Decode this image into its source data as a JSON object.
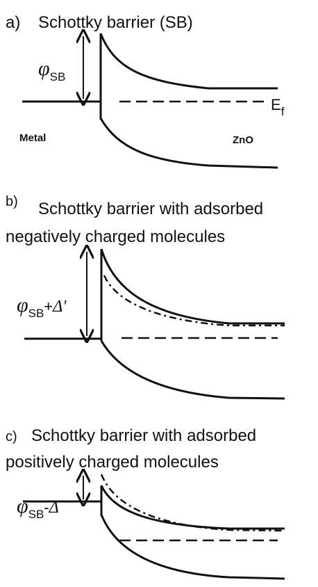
{
  "panels": [
    {
      "label": "a)",
      "title_lines": [
        "Schottky barrier (SB)"
      ],
      "barrier_symbol": "φ",
      "barrier_subscript": "SB",
      "barrier_suffix": "",
      "fermi_symbol": "E",
      "fermi_subscript": "f",
      "metal": "Metal",
      "semiconductor": "ZnO"
    },
    {
      "label": "b)",
      "title_lines": [
        "Schottky barrier with adsorbed",
        "negatively charged molecules"
      ],
      "barrier_symbol": "φ",
      "barrier_subscript": "SB",
      "barrier_op": "+",
      "barrier_suffix": "Δ'"
    },
    {
      "label": "c)",
      "title_lines": [
        "Schottky barrier with adsorbed",
        "positively charged molecules"
      ],
      "barrier_symbol": "φ",
      "barrier_subscript": "SB",
      "barrier_op": "-",
      "barrier_suffix": "Δ"
    }
  ]
}
